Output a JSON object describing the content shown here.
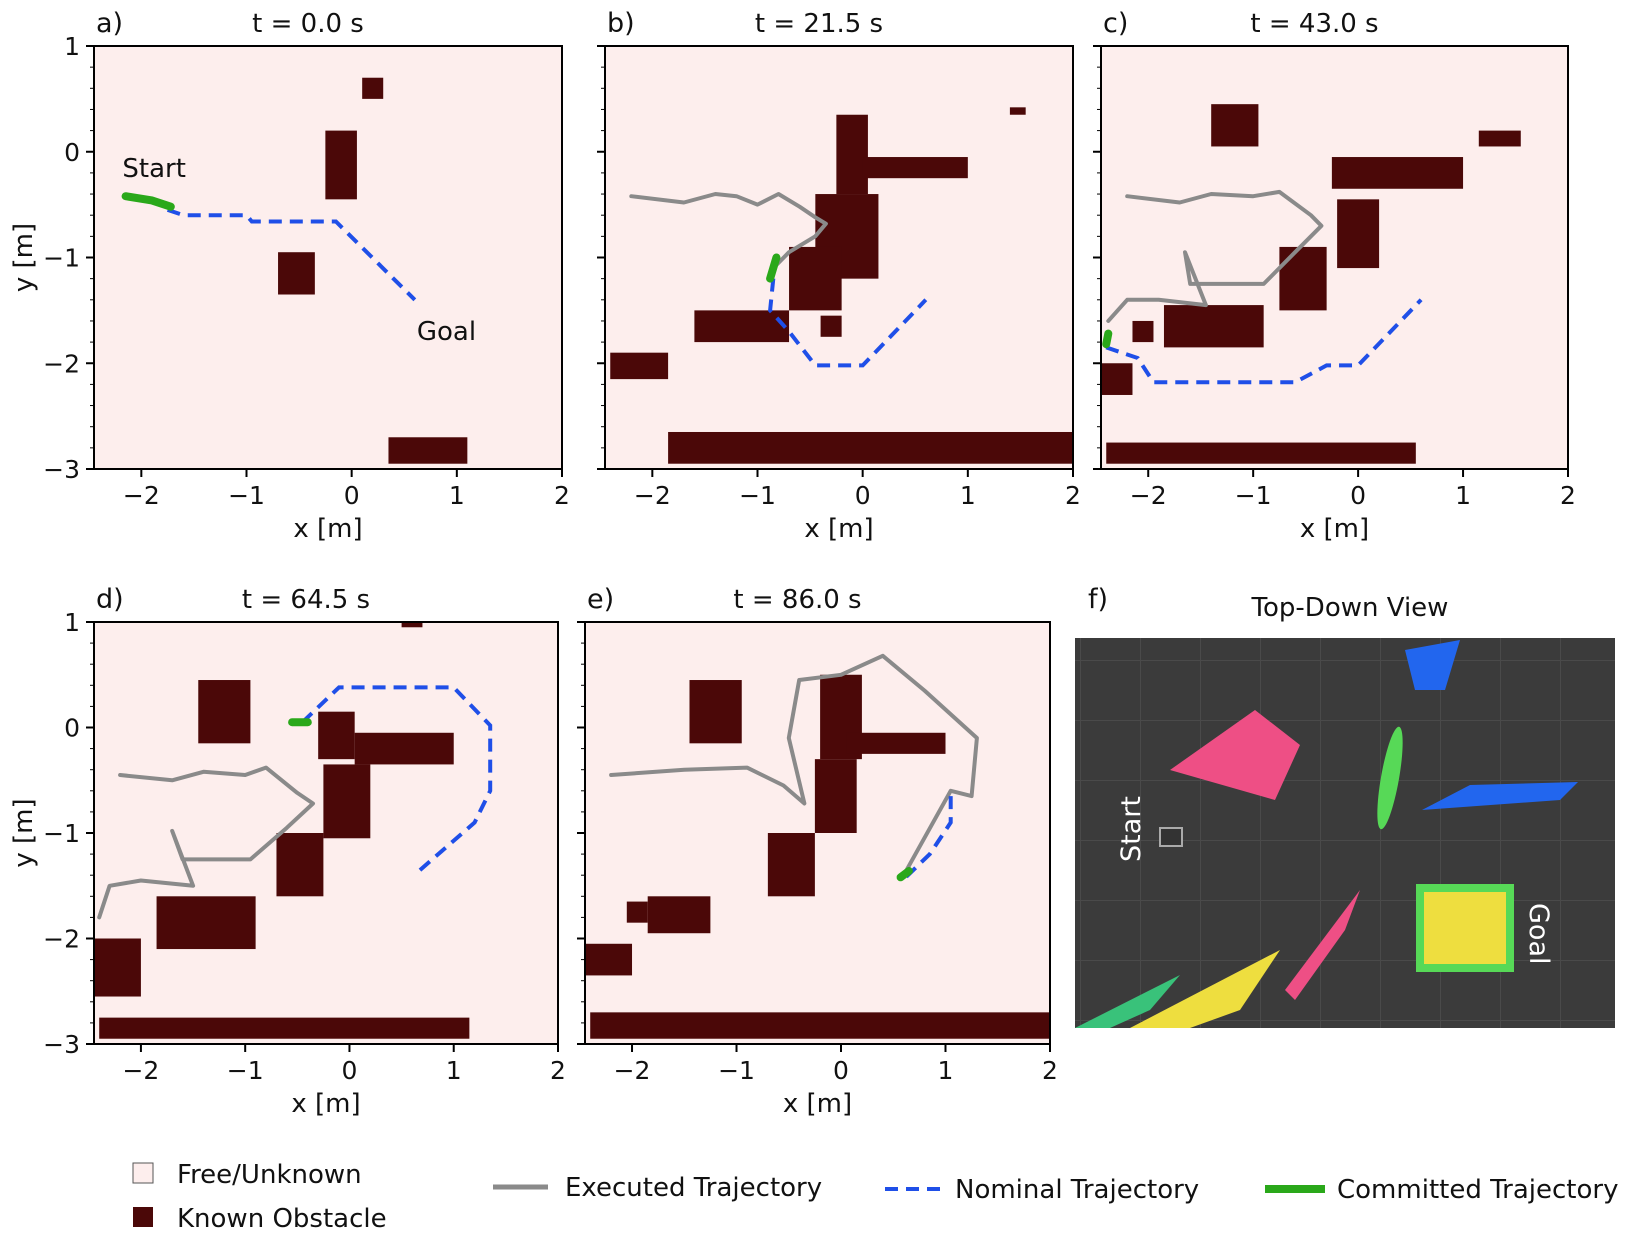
{
  "colors": {
    "free": "#fdeeed",
    "obstacle": "#4b0808",
    "executed": "#8a8a8a",
    "nominal": "#1f4fe8",
    "committed": "#2aa81a",
    "frame": "#000000"
  },
  "panels": [
    {
      "letter": "a)",
      "title": "t = 0.0 s"
    },
    {
      "letter": "b)",
      "title": "t = 21.5 s"
    },
    {
      "letter": "c)",
      "title": "t = 43.0 s"
    },
    {
      "letter": "d)",
      "title": "t = 64.5 s"
    },
    {
      "letter": "e)",
      "title": "t = 86.0 s"
    }
  ],
  "annotations": {
    "start": "Start",
    "goal": "Goal"
  },
  "photo": {
    "letter": "f)",
    "title": "Top-Down View",
    "start_label": "Start",
    "goal_label": "Goal",
    "floor_color": "#3b3b3b",
    "obstacle_colors": [
      "#ee4f85",
      "#57d957",
      "#2266ee",
      "#eede3f",
      "#39c27a"
    ]
  },
  "legend": {
    "free": "Free/Unknown",
    "obstacle": "Known Obstacle",
    "executed": "Executed Trajectory",
    "nominal": "Nominal Trajectory",
    "committed": "Committed Trajectory"
  },
  "chart_data": [
    {
      "type": "heatmap",
      "panel": "a)",
      "title": "t = 0.0 s",
      "xlabel": "x [m]",
      "ylabel": "y [m]",
      "xlim": [
        -2.45,
        2.0
      ],
      "ylim": [
        -3.0,
        1.0
      ],
      "xticks": [
        -2,
        -1,
        0,
        1,
        2
      ],
      "yticks": [
        -3,
        -2,
        -1,
        0,
        1
      ],
      "obstacles": [
        {
          "x": [
            0.1,
            0.3
          ],
          "y": [
            0.5,
            0.7
          ]
        },
        {
          "x": [
            -0.25,
            0.05
          ],
          "y": [
            -0.45,
            0.2
          ]
        },
        {
          "x": [
            -0.7,
            -0.35
          ],
          "y": [
            -1.35,
            -0.95
          ]
        },
        {
          "x": [
            0.35,
            1.1
          ],
          "y": [
            -2.95,
            -2.7
          ]
        }
      ],
      "executed": [],
      "nominal": [
        [
          -1.75,
          -0.55
        ],
        [
          -1.6,
          -0.6
        ],
        [
          -1.0,
          -0.6
        ],
        [
          -0.95,
          -0.66
        ],
        [
          -0.15,
          -0.66
        ],
        [
          0.6,
          -1.4
        ]
      ],
      "committed": [
        [
          -2.15,
          -0.42
        ],
        [
          -1.9,
          -0.46
        ],
        [
          -1.72,
          -0.52
        ]
      ]
    },
    {
      "type": "heatmap",
      "panel": "b)",
      "title": "t = 21.5 s",
      "xlabel": "x [m]",
      "ylabel": "",
      "xlim": [
        -2.45,
        2.0
      ],
      "ylim": [
        -3.0,
        1.0
      ],
      "xticks": [
        -2,
        -1,
        0,
        1,
        2
      ],
      "yticks": [
        -3,
        -2,
        -1,
        0,
        1
      ],
      "obstacles": [
        {
          "x": [
            1.4,
            1.55
          ],
          "y": [
            0.35,
            0.42
          ]
        },
        {
          "x": [
            -0.25,
            0.05
          ],
          "y": [
            -0.4,
            0.35
          ]
        },
        {
          "x": [
            0.0,
            1.0
          ],
          "y": [
            -0.25,
            -0.05
          ]
        },
        {
          "x": [
            -0.45,
            0.15
          ],
          "y": [
            -1.2,
            -0.4
          ]
        },
        {
          "x": [
            -0.7,
            -0.2
          ],
          "y": [
            -1.5,
            -0.9
          ]
        },
        {
          "x": [
            -1.6,
            -0.7
          ],
          "y": [
            -1.8,
            -1.5
          ]
        },
        {
          "x": [
            -0.4,
            -0.2
          ],
          "y": [
            -1.75,
            -1.55
          ]
        },
        {
          "x": [
            -2.4,
            -1.85
          ],
          "y": [
            -2.15,
            -1.9
          ]
        },
        {
          "x": [
            -1.85,
            2.0
          ],
          "y": [
            -2.95,
            -2.65
          ]
        }
      ],
      "executed": [
        [
          -2.2,
          -0.42
        ],
        [
          -1.7,
          -0.48
        ],
        [
          -1.4,
          -0.4
        ],
        [
          -1.2,
          -0.42
        ],
        [
          -1.0,
          -0.5
        ],
        [
          -0.8,
          -0.4
        ],
        [
          -0.6,
          -0.52
        ],
        [
          -0.45,
          -0.62
        ],
        [
          -0.35,
          -0.68
        ],
        [
          -0.45,
          -0.8
        ],
        [
          -0.7,
          -0.95
        ],
        [
          -0.85,
          -1.1
        ]
      ],
      "nominal": [
        [
          -0.85,
          -1.2
        ],
        [
          -0.88,
          -1.5
        ],
        [
          -0.7,
          -1.7
        ],
        [
          -0.45,
          -2.02
        ],
        [
          0.0,
          -2.02
        ],
        [
          0.6,
          -1.4
        ]
      ],
      "committed": [
        [
          -0.82,
          -1.0
        ],
        [
          -0.88,
          -1.2
        ]
      ]
    },
    {
      "type": "heatmap",
      "panel": "c)",
      "title": "t = 43.0 s",
      "xlabel": "x [m]",
      "ylabel": "",
      "xlim": [
        -2.45,
        2.0
      ],
      "ylim": [
        -3.0,
        1.0
      ],
      "xticks": [
        -2,
        -1,
        0,
        1,
        2
      ],
      "yticks": [
        -3,
        -2,
        -1,
        0,
        1
      ],
      "obstacles": [
        {
          "x": [
            -1.4,
            -0.95
          ],
          "y": [
            0.05,
            0.45
          ]
        },
        {
          "x": [
            1.15,
            1.55
          ],
          "y": [
            0.05,
            0.2
          ]
        },
        {
          "x": [
            -0.25,
            1.0
          ],
          "y": [
            -0.35,
            -0.05
          ]
        },
        {
          "x": [
            -0.2,
            0.2
          ],
          "y": [
            -1.1,
            -0.45
          ]
        },
        {
          "x": [
            -0.75,
            -0.3
          ],
          "y": [
            -1.5,
            -0.9
          ]
        },
        {
          "x": [
            -1.85,
            -0.9
          ],
          "y": [
            -1.85,
            -1.45
          ]
        },
        {
          "x": [
            -2.15,
            -1.95
          ],
          "y": [
            -1.8,
            -1.6
          ]
        },
        {
          "x": [
            -2.45,
            -2.15
          ],
          "y": [
            -2.3,
            -2.0
          ]
        },
        {
          "x": [
            -2.4,
            0.55
          ],
          "y": [
            -2.95,
            -2.75
          ]
        }
      ],
      "executed": [
        [
          -2.2,
          -0.42
        ],
        [
          -1.7,
          -0.48
        ],
        [
          -1.4,
          -0.4
        ],
        [
          -1.0,
          -0.42
        ],
        [
          -0.75,
          -0.38
        ],
        [
          -0.45,
          -0.6
        ],
        [
          -0.35,
          -0.7
        ],
        [
          -0.6,
          -0.95
        ],
        [
          -0.9,
          -1.25
        ],
        [
          -1.6,
          -1.25
        ],
        [
          -1.65,
          -0.95
        ],
        [
          -1.45,
          -1.45
        ],
        [
          -1.9,
          -1.4
        ],
        [
          -2.2,
          -1.4
        ],
        [
          -2.38,
          -1.6
        ]
      ],
      "nominal": [
        [
          -2.4,
          -1.85
        ],
        [
          -2.1,
          -1.95
        ],
        [
          -1.95,
          -2.18
        ],
        [
          -0.6,
          -2.18
        ],
        [
          -0.3,
          -2.02
        ],
        [
          0.0,
          -2.02
        ],
        [
          0.6,
          -1.4
        ]
      ],
      "committed": [
        [
          -2.38,
          -1.72
        ],
        [
          -2.4,
          -1.82
        ]
      ]
    },
    {
      "type": "heatmap",
      "panel": "d)",
      "title": "t = 64.5 s",
      "xlabel": "x [m]",
      "ylabel": "y [m]",
      "xlim": [
        -2.45,
        2.0
      ],
      "ylim": [
        -3.0,
        1.0
      ],
      "xticks": [
        -2,
        -1,
        0,
        1,
        2
      ],
      "yticks": [
        -3,
        -2,
        -1,
        0,
        1
      ],
      "obstacles": [
        {
          "x": [
            0.5,
            0.7
          ],
          "y": [
            0.95,
            1.0
          ]
        },
        {
          "x": [
            -1.45,
            -0.95
          ],
          "y": [
            -0.15,
            0.45
          ]
        },
        {
          "x": [
            -0.3,
            0.05
          ],
          "y": [
            -0.3,
            0.15
          ]
        },
        {
          "x": [
            0.05,
            1.0
          ],
          "y": [
            -0.35,
            -0.05
          ]
        },
        {
          "x": [
            -0.25,
            0.2
          ],
          "y": [
            -1.05,
            -0.35
          ]
        },
        {
          "x": [
            -0.7,
            -0.25
          ],
          "y": [
            -1.6,
            -1.0
          ]
        },
        {
          "x": [
            -1.85,
            -0.9
          ],
          "y": [
            -2.1,
            -1.6
          ]
        },
        {
          "x": [
            -2.45,
            -2.0
          ],
          "y": [
            -2.55,
            -2.0
          ]
        },
        {
          "x": [
            -2.4,
            1.15
          ],
          "y": [
            -2.95,
            -2.75
          ]
        }
      ],
      "executed": [
        [
          -2.2,
          -0.45
        ],
        [
          -1.7,
          -0.5
        ],
        [
          -1.4,
          -0.42
        ],
        [
          -1.0,
          -0.45
        ],
        [
          -0.8,
          -0.38
        ],
        [
          -0.5,
          -0.62
        ],
        [
          -0.35,
          -0.72
        ],
        [
          -0.6,
          -0.95
        ],
        [
          -0.95,
          -1.25
        ],
        [
          -1.6,
          -1.25
        ],
        [
          -1.7,
          -0.98
        ],
        [
          -1.5,
          -1.5
        ],
        [
          -2.0,
          -1.45
        ],
        [
          -2.3,
          -1.5
        ],
        [
          -2.4,
          -1.8
        ]
      ],
      "nominal": [
        [
          -0.45,
          0.05
        ],
        [
          -0.1,
          0.38
        ],
        [
          1.0,
          0.38
        ],
        [
          1.35,
          0.02
        ],
        [
          1.35,
          -0.6
        ],
        [
          1.2,
          -0.9
        ],
        [
          0.62,
          -1.4
        ]
      ],
      "committed": [
        [
          -0.55,
          0.05
        ],
        [
          -0.4,
          0.05
        ]
      ]
    },
    {
      "type": "heatmap",
      "panel": "e)",
      "title": "t = 86.0 s",
      "xlabel": "x [m]",
      "ylabel": "",
      "xlim": [
        -2.45,
        2.0
      ],
      "ylim": [
        -3.0,
        1.0
      ],
      "xticks": [
        -2,
        -1,
        0,
        1,
        2
      ],
      "yticks": [
        -3,
        -2,
        -1,
        0,
        1
      ],
      "obstacles": [
        {
          "x": [
            -1.45,
            -0.95
          ],
          "y": [
            -0.15,
            0.45
          ]
        },
        {
          "x": [
            -0.2,
            0.2
          ],
          "y": [
            -0.3,
            0.5
          ]
        },
        {
          "x": [
            0.05,
            1.0
          ],
          "y": [
            -0.25,
            -0.05
          ]
        },
        {
          "x": [
            -0.25,
            0.15
          ],
          "y": [
            -1.0,
            -0.3
          ]
        },
        {
          "x": [
            -0.7,
            -0.25
          ],
          "y": [
            -1.6,
            -1.0
          ]
        },
        {
          "x": [
            -2.05,
            -1.85
          ],
          "y": [
            -1.85,
            -1.65
          ]
        },
        {
          "x": [
            -1.85,
            -1.25
          ],
          "y": [
            -1.95,
            -1.6
          ]
        },
        {
          "x": [
            -2.45,
            -2.0
          ],
          "y": [
            -2.35,
            -2.05
          ]
        },
        {
          "x": [
            -2.4,
            2.0
          ],
          "y": [
            -2.95,
            -2.7
          ]
        }
      ],
      "executed": [
        [
          -2.2,
          -0.45
        ],
        [
          -1.5,
          -0.4
        ],
        [
          -0.9,
          -0.38
        ],
        [
          -0.55,
          -0.55
        ],
        [
          -0.35,
          -0.72
        ],
        [
          -0.5,
          -0.1
        ],
        [
          -0.4,
          0.45
        ],
        [
          0.0,
          0.5
        ],
        [
          0.4,
          0.68
        ],
        [
          0.8,
          0.35
        ],
        [
          1.3,
          -0.1
        ],
        [
          1.25,
          -0.65
        ],
        [
          1.05,
          -0.6
        ],
        [
          0.6,
          -1.4
        ]
      ],
      "nominal": [
        [
          1.05,
          -0.65
        ],
        [
          1.05,
          -0.9
        ],
        [
          0.85,
          -1.2
        ],
        [
          0.62,
          -1.42
        ]
      ],
      "committed": [
        [
          0.57,
          -1.42
        ],
        [
          0.65,
          -1.36
        ]
      ]
    }
  ]
}
